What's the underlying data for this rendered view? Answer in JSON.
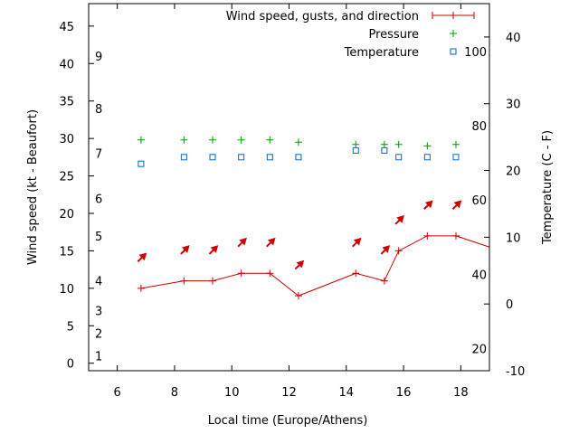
{
  "chart_data": {
    "type": "line",
    "xlabel": "Local time (Europe/Athens)",
    "ylabel": "Wind speed (kt - Beaufort)",
    "y2label": "Temperature (C - F)",
    "xlim": [
      5,
      19
    ],
    "ylim": [
      -1,
      48
    ],
    "y2lim": [
      -10,
      45
    ],
    "x_ticks": [
      "6",
      "8",
      "10",
      "12",
      "14",
      "16",
      "18"
    ],
    "x_tick_values": [
      6,
      8,
      10,
      12,
      14,
      16,
      18
    ],
    "y_ticks": [
      "0",
      "5",
      "10",
      "15",
      "20",
      "25",
      "30",
      "35",
      "40",
      "45"
    ],
    "y_tick_values": [
      0,
      5,
      10,
      15,
      20,
      25,
      30,
      35,
      40,
      45
    ],
    "y2_ticks": [
      "-10",
      "0",
      "10",
      "20",
      "30",
      "40"
    ],
    "y2_tick_values": [
      -10,
      0,
      10,
      20,
      30,
      40
    ],
    "beaufort_labels": [
      {
        "label": "1",
        "kt": 1
      },
      {
        "label": "2",
        "kt": 4
      },
      {
        "label": "3",
        "kt": 7
      },
      {
        "label": "4",
        "kt": 11
      },
      {
        "label": "5",
        "kt": 17
      },
      {
        "label": "6",
        "kt": 22
      },
      {
        "label": "7",
        "kt": 28
      },
      {
        "label": "8",
        "kt": 34
      },
      {
        "label": "9",
        "kt": 41
      }
    ],
    "fahrenheit_labels": [
      {
        "label": "20",
        "c": -6.7
      },
      {
        "label": "40",
        "c": 4.4
      },
      {
        "label": "60",
        "c": 15.6
      },
      {
        "label": "80",
        "c": 26.7
      },
      {
        "label": "100",
        "c": 37.8
      }
    ],
    "legend_position": "top-right",
    "series": [
      {
        "name": "Wind speed, gusts, and direction",
        "color": "#cc0000",
        "x": [
          6.83,
          8.33,
          9.33,
          10.33,
          11.33,
          12.33,
          14.33,
          15.33,
          15.83,
          16.83,
          17.83,
          19.0
        ],
        "values": [
          10,
          11,
          11,
          12,
          12,
          9,
          12,
          11,
          15,
          17,
          17,
          15.5
        ],
        "gusts": [
          14,
          15,
          15,
          16,
          16,
          13,
          16,
          15,
          19,
          21,
          21,
          null
        ]
      },
      {
        "name": "Pressure",
        "color": "#009900",
        "x": [
          6.83,
          8.33,
          9.33,
          10.33,
          11.33,
          12.33,
          14.33,
          15.33,
          15.83,
          16.83,
          17.83
        ],
        "values": [
          29.8,
          29.8,
          29.8,
          29.8,
          29.8,
          29.5,
          29.2,
          29.2,
          29.2,
          29.0,
          29.2
        ]
      },
      {
        "name": "Temperature",
        "color": "#0066cc",
        "axis": "right",
        "x": [
          6.83,
          8.33,
          9.33,
          10.33,
          11.33,
          12.33,
          14.33,
          15.33,
          15.83,
          16.83,
          17.83
        ],
        "values": [
          21,
          22,
          22,
          22,
          22,
          22,
          23,
          23,
          22,
          22,
          22
        ]
      }
    ]
  }
}
